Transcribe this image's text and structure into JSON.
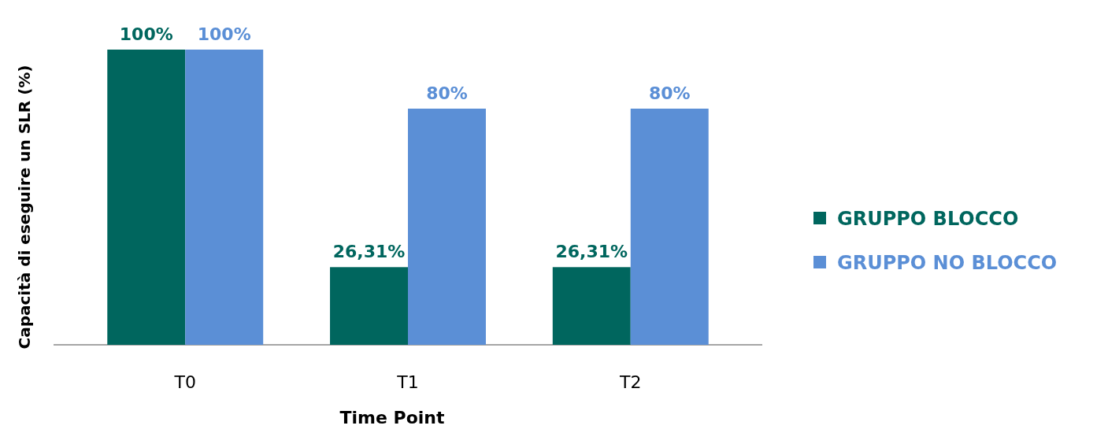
{
  "chart_data": {
    "type": "bar",
    "xlabel": "Time Point",
    "ylabel": "Capacità di eseguire un SLR (%)",
    "categories": [
      "T0",
      "T1",
      "T2"
    ],
    "legend": "right",
    "series": [
      {
        "name": "GRUPPO BLOCCO",
        "color": "#00665e",
        "values": [
          100,
          26.31,
          26.31
        ],
        "value_labels": [
          "100%",
          "26,31%",
          "26,31%"
        ]
      },
      {
        "name": "GRUPPO NO BLOCCO",
        "color": "#5b8fd6",
        "values": [
          100,
          80,
          80
        ],
        "value_labels": [
          "100%",
          "80%",
          "80%"
        ]
      }
    ]
  }
}
